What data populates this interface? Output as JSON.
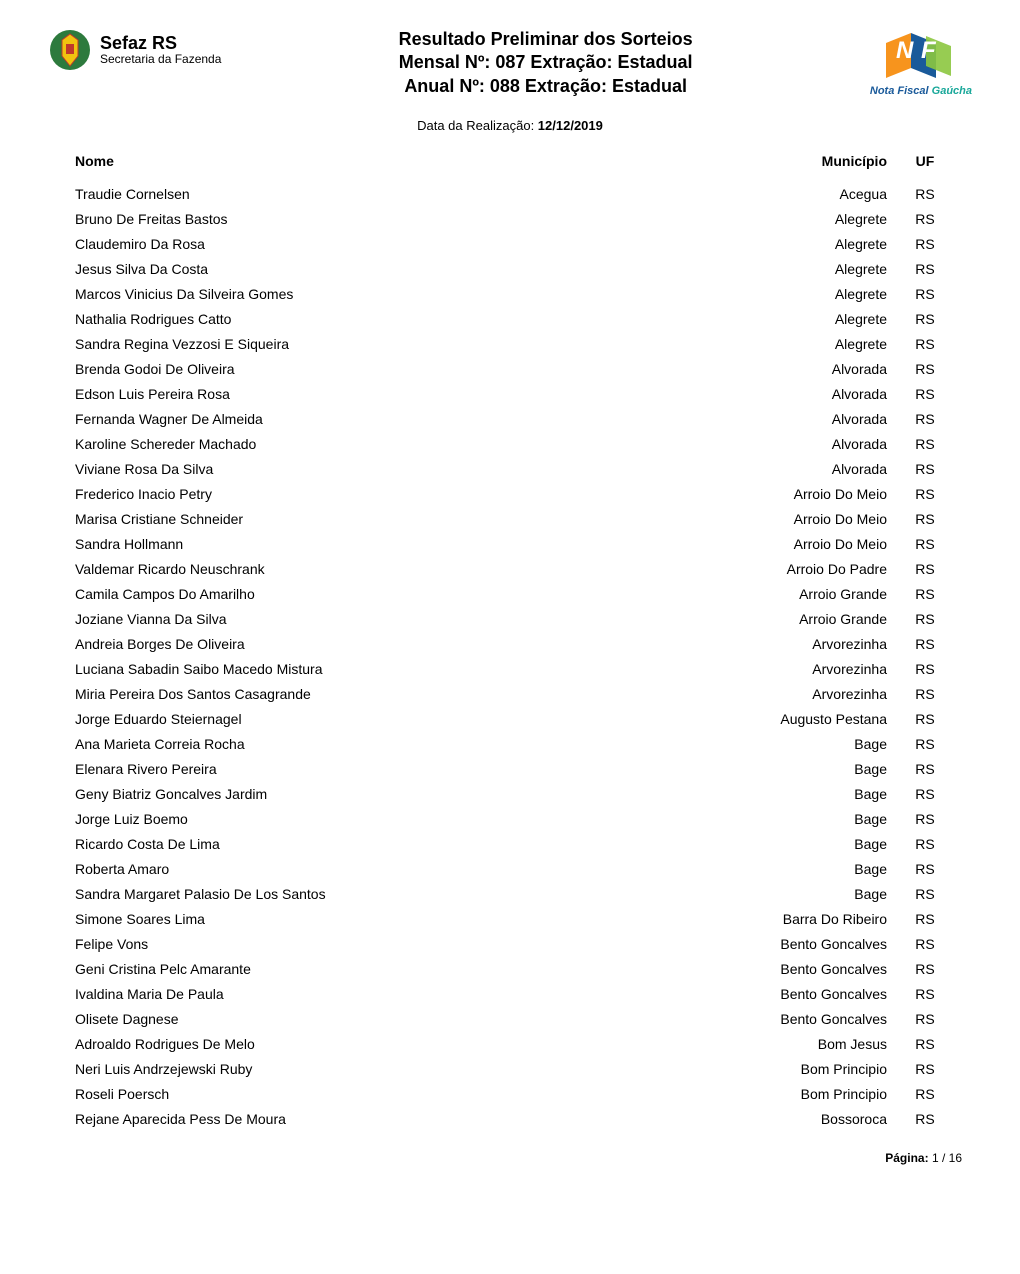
{
  "header": {
    "logo_left": {
      "title": "Sefaz RS",
      "subtitle": "Secretaria da Fazenda"
    },
    "title_line1": "Resultado Preliminar dos Sorteios",
    "title_line2": "Mensal Nº: 087 Extração: Estadual",
    "title_line3": "Anual Nº: 088 Extração: Estadual",
    "logo_right": {
      "text_part1": "Nota Fiscal",
      "text_part2": "Gaúcha"
    }
  },
  "date": {
    "label": "Data da Realização: ",
    "value": "12/12/2019"
  },
  "table": {
    "headers": {
      "nome": "Nome",
      "municipio": "Município",
      "uf": "UF"
    },
    "rows": [
      {
        "nome": "Traudie Cornelsen",
        "municipio": "Acegua",
        "uf": "RS"
      },
      {
        "nome": "Bruno De Freitas Bastos",
        "municipio": "Alegrete",
        "uf": "RS"
      },
      {
        "nome": "Claudemiro Da Rosa",
        "municipio": "Alegrete",
        "uf": "RS"
      },
      {
        "nome": "Jesus Silva Da Costa",
        "municipio": "Alegrete",
        "uf": "RS"
      },
      {
        "nome": "Marcos Vinicius Da Silveira Gomes",
        "municipio": "Alegrete",
        "uf": "RS"
      },
      {
        "nome": "Nathalia Rodrigues Catto",
        "municipio": "Alegrete",
        "uf": "RS"
      },
      {
        "nome": "Sandra Regina Vezzosi E Siqueira",
        "municipio": "Alegrete",
        "uf": "RS"
      },
      {
        "nome": "Brenda Godoi De Oliveira",
        "municipio": "Alvorada",
        "uf": "RS"
      },
      {
        "nome": "Edson Luis Pereira Rosa",
        "municipio": "Alvorada",
        "uf": "RS"
      },
      {
        "nome": "Fernanda Wagner De Almeida",
        "municipio": "Alvorada",
        "uf": "RS"
      },
      {
        "nome": "Karoline Schereder Machado",
        "municipio": "Alvorada",
        "uf": "RS"
      },
      {
        "nome": "Viviane Rosa Da Silva",
        "municipio": "Alvorada",
        "uf": "RS"
      },
      {
        "nome": "Frederico Inacio Petry",
        "municipio": "Arroio Do Meio",
        "uf": "RS"
      },
      {
        "nome": "Marisa Cristiane Schneider",
        "municipio": "Arroio Do Meio",
        "uf": "RS"
      },
      {
        "nome": "Sandra Hollmann",
        "municipio": "Arroio Do Meio",
        "uf": "RS"
      },
      {
        "nome": "Valdemar Ricardo Neuschrank",
        "municipio": "Arroio Do Padre",
        "uf": "RS"
      },
      {
        "nome": "Camila Campos Do Amarilho",
        "municipio": "Arroio Grande",
        "uf": "RS"
      },
      {
        "nome": "Joziane Vianna Da Silva",
        "municipio": "Arroio Grande",
        "uf": "RS"
      },
      {
        "nome": "Andreia Borges De Oliveira",
        "municipio": "Arvorezinha",
        "uf": "RS"
      },
      {
        "nome": "Luciana Sabadin Saibo Macedo Mistura",
        "municipio": "Arvorezinha",
        "uf": "RS"
      },
      {
        "nome": "Miria Pereira Dos Santos Casagrande",
        "municipio": "Arvorezinha",
        "uf": "RS"
      },
      {
        "nome": "Jorge Eduardo Steiernagel",
        "municipio": "Augusto Pestana",
        "uf": "RS"
      },
      {
        "nome": "Ana Marieta Correia Rocha",
        "municipio": "Bage",
        "uf": "RS"
      },
      {
        "nome": "Elenara Rivero Pereira",
        "municipio": "Bage",
        "uf": "RS"
      },
      {
        "nome": "Geny Biatriz Goncalves Jardim",
        "municipio": "Bage",
        "uf": "RS"
      },
      {
        "nome": "Jorge Luiz Boemo",
        "municipio": "Bage",
        "uf": "RS"
      },
      {
        "nome": "Ricardo Costa De Lima",
        "municipio": "Bage",
        "uf": "RS"
      },
      {
        "nome": "Roberta Amaro",
        "municipio": "Bage",
        "uf": "RS"
      },
      {
        "nome": "Sandra Margaret Palasio De Los Santos",
        "municipio": "Bage",
        "uf": "RS"
      },
      {
        "nome": "Simone Soares Lima",
        "municipio": "Barra Do Ribeiro",
        "uf": "RS"
      },
      {
        "nome": "Felipe Vons",
        "municipio": "Bento Goncalves",
        "uf": "RS"
      },
      {
        "nome": "Geni Cristina Pelc Amarante",
        "municipio": "Bento Goncalves",
        "uf": "RS"
      },
      {
        "nome": "Ivaldina Maria De Paula",
        "municipio": "Bento Goncalves",
        "uf": "RS"
      },
      {
        "nome": "Olisete Dagnese",
        "municipio": "Bento Goncalves",
        "uf": "RS"
      },
      {
        "nome": "Adroaldo Rodrigues De Melo",
        "municipio": "Bom Jesus",
        "uf": "RS"
      },
      {
        "nome": "Neri Luis Andrzejewski Ruby",
        "municipio": "Bom Principio",
        "uf": "RS"
      },
      {
        "nome": "Roseli Poersch",
        "municipio": "Bom Principio",
        "uf": "RS"
      },
      {
        "nome": "Rejane Aparecida Pess De Moura",
        "municipio": "Bossoroca",
        "uf": "RS"
      }
    ]
  },
  "footer": {
    "label": "Página: ",
    "current": "1",
    "separator": " / ",
    "total": "16"
  },
  "colors": {
    "text": "#000000",
    "background": "#ffffff",
    "nfg_blue": "#1a5a9a",
    "nfg_teal": "#1aa89a",
    "nfg_orange": "#f7941d",
    "nfg_green": "#8cc63f",
    "emblem_green": "#2d7a3d",
    "emblem_red": "#c0392b",
    "emblem_yellow": "#f1c40f"
  }
}
